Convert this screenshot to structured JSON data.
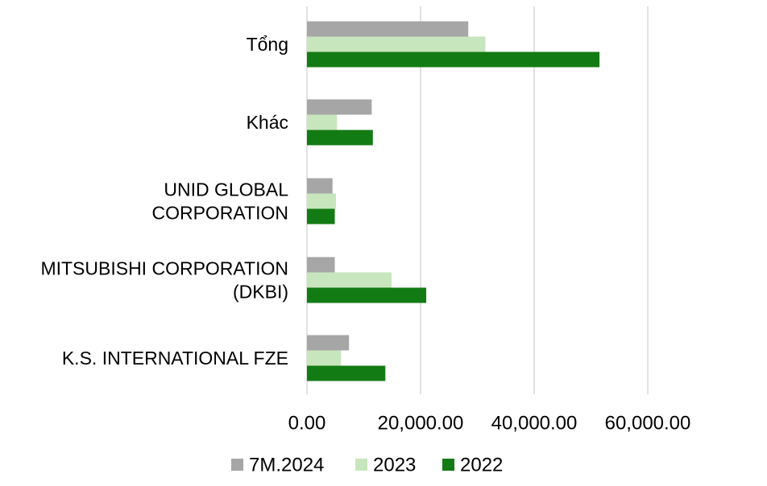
{
  "chart_data": {
    "type": "bar",
    "orientation": "horizontal",
    "title": "",
    "xlabel": "",
    "ylabel": "",
    "categories": [
      [
        "Tổng"
      ],
      [
        "Khác"
      ],
      [
        "UNID GLOBAL",
        "CORPORATION"
      ],
      [
        "MITSUBISHI CORPORATION",
        "(DKBI)"
      ],
      [
        "K.S. INTERNATIONAL FZE"
      ]
    ],
    "series": [
      {
        "name": "7M.2024",
        "color": "#a6a6a6",
        "values": [
          28400,
          11400,
          4500,
          4900,
          7400
        ]
      },
      {
        "name": "2023",
        "color": "#c8e6bd",
        "values": [
          31400,
          5300,
          5100,
          14900,
          6000
        ]
      },
      {
        "name": "2022",
        "color": "#137b13",
        "values": [
          51500,
          11600,
          4900,
          21000,
          13800
        ]
      }
    ],
    "xlim": [
      0,
      60000
    ],
    "xticks": [
      0,
      20000,
      40000,
      60000
    ],
    "xtick_labels": [
      "0.00",
      "20,000.00",
      "40,000.00",
      "60,000.00"
    ],
    "grid": true,
    "legend_position": "bottom"
  }
}
